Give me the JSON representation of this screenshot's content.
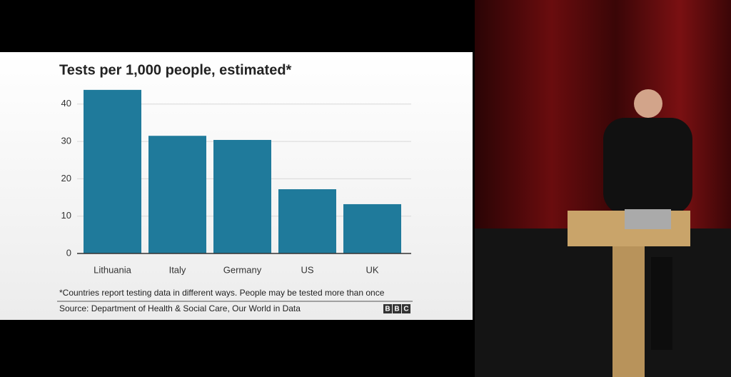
{
  "chart_data": {
    "type": "bar",
    "title": "Tests per 1,000 people, estimated*",
    "categories": [
      "Lithuania",
      "Italy",
      "Germany",
      "US",
      "UK"
    ],
    "values": [
      43.8,
      31.5,
      30.4,
      17.2,
      13.2
    ],
    "color": "#1f7a9b",
    "ylim": [
      0,
      45
    ],
    "yticks": [
      0,
      10,
      20,
      30,
      40
    ],
    "grid": true,
    "footnote": "*Countries report testing data in different ways. People may be tested more than once",
    "source": "Source: Department of Health & Social Care, Our World in Data",
    "logo": [
      "B",
      "B",
      "C"
    ]
  }
}
